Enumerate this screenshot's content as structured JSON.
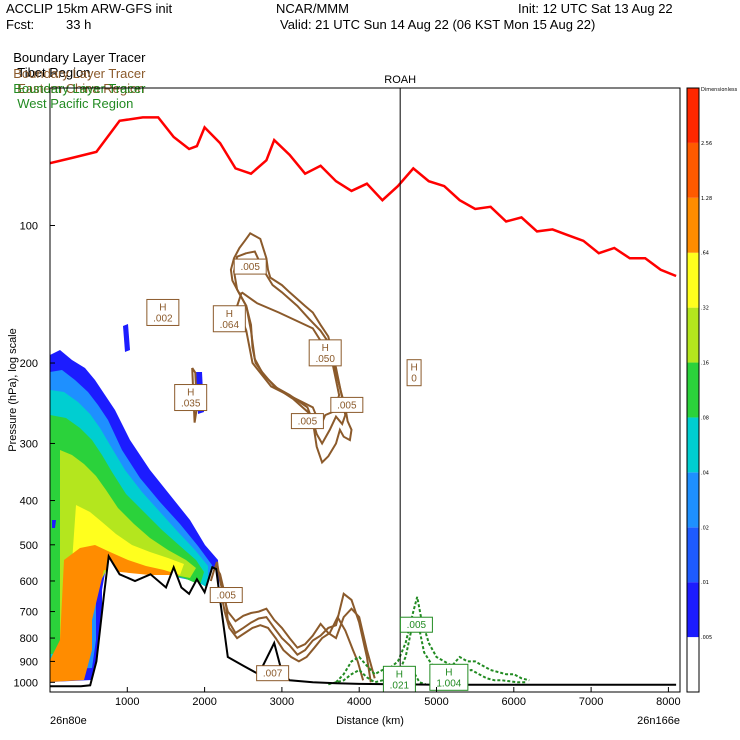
{
  "header": {
    "model": "ACCLIP 15km ARW-GFS init",
    "org": "NCAR/MMM",
    "init": "Init: 12 UTC Sat 13 Aug 22",
    "fcst_label": "Fcst:",
    "fcst_value": "33 h",
    "valid": "Valid: 21 UTC Sun 14 Aug 22 (06 KST Mon 15 Aug 22)"
  },
  "legend": [
    {
      "name": "Boundary Layer Tracer",
      "region": "Tibet Region",
      "color": "#000000"
    },
    {
      "name": "Boundary Layer Tracer",
      "region": "Eastern China Region",
      "color": "#8b5a2b"
    },
    {
      "name": "Boundary Layer Tracer",
      "region": "West Pacific Region",
      "color": "#228b22"
    }
  ],
  "chart_data": {
    "type": "cross-section",
    "xlabel": "Distance (km)",
    "ylabel": "Pressure (hPa), log scale",
    "xlim": [
      0,
      8150
    ],
    "ylim": [
      1050,
      50
    ],
    "x_ticks": [
      "1000",
      "2000",
      "3000",
      "4000",
      "5000",
      "6000",
      "7000",
      "8000"
    ],
    "y_ticks": [
      "100",
      "200",
      "300",
      "400",
      "500",
      "600",
      "700",
      "800",
      "900",
      "1000"
    ],
    "x_start_label": "26n80e",
    "x_end_label": "26n166e",
    "marker": {
      "label": "ROAH",
      "x_km": 4530
    },
    "colorbar": {
      "title": "Dimensionless",
      "levels": [
        ".005",
        ".01",
        ".02",
        ".04",
        ".08",
        ".16",
        ".32",
        ".64",
        "1.28",
        "2.56"
      ],
      "colors": [
        "#ffffff",
        "#1c1cff",
        "#1e5bff",
        "#1e90ff",
        "#00ced1",
        "#2bd23b",
        "#b4e61e",
        "#ffff1e",
        "#ff8c00",
        "#ff5a00",
        "#ff2800"
      ]
    },
    "annotations": [
      {
        "text": "H\n.002",
        "x_km": 1460,
        "p": 155,
        "color": "#8b5a2b"
      },
      {
        "text": ".005",
        "x_km": 2590,
        "p": 123,
        "color": "#8b5a2b"
      },
      {
        "text": "H\n.064",
        "x_km": 2320,
        "p": 160,
        "color": "#8b5a2b"
      },
      {
        "text": "H\n.050",
        "x_km": 3560,
        "p": 190,
        "color": "#8b5a2b"
      },
      {
        "text": "H\n.035",
        "x_km": 1820,
        "p": 238,
        "color": "#8b5a2b"
      },
      {
        "text": ".005",
        "x_km": 3840,
        "p": 247,
        "color": "#8b5a2b"
      },
      {
        "text": ".005",
        "x_km": 3330,
        "p": 268,
        "color": "#8b5a2b"
      },
      {
        "text": "H\n0",
        "x_km": 4710,
        "p": 210,
        "color": "#8b5a2b"
      },
      {
        "text": ".005",
        "x_km": 2280,
        "p": 644,
        "color": "#8b5a2b"
      },
      {
        "text": ".007",
        "x_km": 2880,
        "p": 955,
        "color": "#8b5a2b"
      },
      {
        "text": ".005",
        "x_km": 4740,
        "p": 748,
        "color": "#228b22"
      },
      {
        "text": "H\n.021",
        "x_km": 4520,
        "p": 985,
        "color": "#228b22"
      },
      {
        "text": "H\n1.004",
        "x_km": 5160,
        "p": 975,
        "color": "#228b22"
      }
    ],
    "tropopause": {
      "color": "#ff0000",
      "x_km": [
        0,
        300,
        600,
        900,
        1200,
        1400,
        1600,
        1800,
        1900,
        2000,
        2200,
        2400,
        2600,
        2800,
        2900,
        3100,
        3300,
        3500,
        3700,
        3900,
        4100,
        4300,
        4500,
        4700,
        4900,
        5100,
        5300,
        5500,
        5700,
        5900,
        6100,
        6300,
        6500,
        6700,
        6900,
        7100,
        7300,
        7500,
        7700,
        7900,
        8100
      ],
      "p_hPa": [
        73,
        71,
        69,
        59,
        58,
        58,
        64,
        68,
        67,
        61,
        66,
        75,
        77,
        72,
        65,
        70,
        77,
        74,
        80,
        84,
        81,
        88,
        82,
        75,
        80,
        82,
        88,
        92,
        91,
        98,
        96,
        103,
        102,
        105,
        108,
        115,
        112,
        118,
        118,
        125,
        129
      ]
    },
    "terrain": {
      "color": "#000000",
      "x_km": [
        0,
        200,
        400,
        520,
        600,
        700,
        760,
        900,
        1100,
        1300,
        1500,
        1600,
        1700,
        1800,
        1900,
        2000,
        2100,
        2150,
        2200,
        2300,
        2500,
        2700,
        2900,
        3000,
        3100,
        3400,
        3700,
        4000,
        4500,
        5000,
        6000,
        7000,
        8100
      ],
      "p_hPa": [
        1020,
        1020,
        1020,
        1015,
        900,
        640,
        530,
        580,
        600,
        580,
        620,
        560,
        620,
        640,
        595,
        635,
        560,
        565,
        660,
        880,
        920,
        960,
        820,
        950,
        990,
        1000,
        1005,
        1008,
        1010,
        1012,
        1012,
        1012,
        1012
      ]
    },
    "eastern_china_contours": [
      {
        "x_km": [
          2520,
          2590,
          2720,
          2800,
          2820,
          2850,
          3000,
          3100,
          3300,
          3400,
          3500,
          3600,
          3650,
          3700,
          3760,
          3820,
          3850,
          3900,
          3880,
          3800,
          3750,
          3700,
          3600,
          3520,
          3450,
          3400,
          3330,
          3100,
          2900,
          2750,
          2660,
          2620,
          2600,
          2540,
          2440,
          2360,
          2340,
          2380,
          2450,
          2520
        ],
        "p_hPa": [
          108,
          104,
          107,
          118,
          125,
          130,
          135,
          140,
          150,
          155,
          165,
          175,
          190,
          210,
          230,
          250,
          268,
          280,
          295,
          290,
          280,
          300,
          320,
          330,
          305,
          268,
          250,
          235,
          225,
          210,
          200,
          185,
          165,
          150,
          140,
          132,
          125,
          118,
          112,
          108
        ]
      },
      {
        "x_km": [
          2540,
          2650,
          2760,
          2880,
          3000,
          3200,
          3350,
          3500,
          3620,
          3700,
          3760,
          3820,
          3780,
          3700,
          3620,
          3520,
          3450,
          3380,
          3150,
          2950,
          2760,
          2650,
          2600,
          2540,
          2420,
          2380,
          2420,
          2540
        ],
        "p_hPa": [
          115,
          114,
          125,
          135,
          140,
          150,
          160,
          170,
          182,
          205,
          230,
          260,
          272,
          262,
          280,
          300,
          286,
          260,
          240,
          228,
          212,
          196,
          170,
          150,
          138,
          126,
          117,
          115
        ]
      },
      {
        "x_km": [
          2480,
          2680,
          2960,
          3400,
          3640,
          3740,
          3680,
          3560,
          3500,
          3400,
          2860,
          2620,
          2540,
          2420,
          2480
        ],
        "p_hPa": [
          140,
          148,
          155,
          168,
          195,
          235,
          255,
          260,
          275,
          250,
          225,
          200,
          170,
          150,
          140
        ]
      },
      {
        "x_km": [
          1840,
          1880,
          1900,
          1870,
          1840
        ],
        "p_hPa": [
          205,
          210,
          250,
          270,
          205
        ]
      },
      {
        "x_km": [
          2080,
          2120,
          2160,
          2200,
          2260,
          2300,
          2400,
          2500,
          2600,
          2700,
          2800,
          2900,
          3000,
          3100,
          3200,
          3300,
          3400,
          3500,
          3600,
          3700,
          3800,
          3900,
          4000,
          4100,
          4200
        ],
        "p_hPa": [
          600,
          570,
          545,
          600,
          660,
          700,
          735,
          715,
          705,
          700,
          690,
          730,
          760,
          800,
          840,
          825,
          790,
          745,
          780,
          800,
          720,
          690,
          720,
          850,
          980
        ]
      },
      {
        "x_km": [
          2150,
          2200,
          2260,
          2300,
          2400,
          2500,
          2600,
          2700,
          2800,
          2900,
          3000,
          3100,
          3200,
          3300,
          3400,
          3500,
          3600,
          3700,
          3800,
          3900,
          4000,
          4100,
          4150
        ],
        "p_hPa": [
          560,
          580,
          640,
          730,
          780,
          760,
          740,
          725,
          720,
          760,
          800,
          830,
          870,
          850,
          810,
          790,
          760,
          750,
          640,
          660,
          740,
          880,
          1000
        ]
      },
      {
        "x_km": [
          2200,
          2260,
          2320,
          2420,
          2520,
          2620,
          2720,
          2820,
          2920,
          3020,
          3120,
          3220,
          3320,
          3420,
          3520,
          3620,
          3720,
          3820,
          3920,
          3980,
          4050
        ],
        "p_hPa": [
          620,
          700,
          760,
          800,
          780,
          760,
          750,
          760,
          800,
          850,
          880,
          900,
          880,
          840,
          800,
          780,
          720,
          770,
          850,
          900,
          990
        ]
      }
    ],
    "west_pacific_contours": [
      {
        "x_km": [
          3700,
          3800,
          3900,
          4000,
          4100,
          4200,
          4300,
          4400,
          4500,
          4600,
          4700,
          4750,
          4800,
          4900,
          5000,
          5100,
          5200,
          5300,
          5400,
          5500,
          5600,
          5700,
          5800,
          5900,
          6000,
          6100,
          6200
        ],
        "p_hPa": [
          1000,
          960,
          900,
          880,
          920,
          960,
          940,
          930,
          900,
          820,
          700,
          650,
          720,
          820,
          880,
          900,
          920,
          880,
          900,
          900,
          920,
          940,
          950,
          960,
          960,
          980,
          990
        ]
      },
      {
        "x_km": [
          3600,
          3700,
          3800,
          3900,
          4000,
          4100,
          4200,
          4300,
          4400,
          4500,
          4600,
          4680,
          4760,
          4840,
          4950,
          5050,
          5150,
          5250,
          5350,
          5450,
          5550,
          5650,
          5750,
          5850,
          5950,
          6050,
          6150
        ],
        "p_hPa": [
          1010,
          1000,
          990,
          960,
          940,
          975,
          1000,
          990,
          970,
          960,
          880,
          760,
          740,
          860,
          920,
          940,
          960,
          930,
          950,
          940,
          960,
          980,
          990,
          990,
          995,
          1000,
          1000
        ]
      },
      {
        "x_km": [
          4500,
          4560,
          4620,
          4680,
          4720,
          4780,
          4860
        ],
        "p_hPa": [
          1010,
          990,
          960,
          940,
          960,
          1000,
          1010
        ]
      }
    ],
    "tibet_shading": {
      "note": "filled tracer concentration contours (colorbar levels), Tibet region",
      "levels": [
        "#1c1cff",
        "#1e90ff",
        "#00ced1",
        "#2bd23b",
        "#b4e61e",
        "#ffff1e",
        "#ff8c00"
      ]
    }
  }
}
